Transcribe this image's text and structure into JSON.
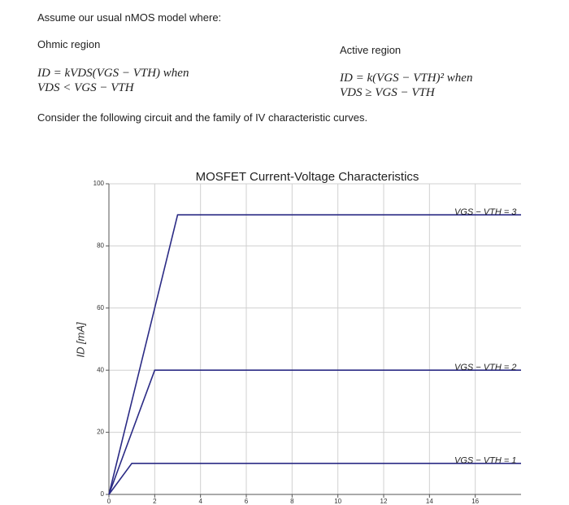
{
  "document": {
    "intro": "Assume our usual nMOS model where:",
    "ohmic": {
      "heading": "Ohmic region",
      "line1": "ID = kVDS(VGS − VTH) when",
      "line2": "VDS < VGS − VTH"
    },
    "active": {
      "heading": "Active region",
      "line1": "ID = k(VGS − VTH)² when",
      "line2": "VDS ≥ VGS − VTH"
    },
    "consider": "Consider the following circuit and the family of IV characteristic curves."
  },
  "chart_data": {
    "type": "line",
    "title": "MOSFET Current-Voltage Characteristics",
    "y_label": "ID [mA]",
    "xlim": [
      0,
      18
    ],
    "ylim": [
      0,
      100
    ],
    "xticks": [
      0,
      2,
      4,
      6,
      8,
      10,
      12,
      14,
      16
    ],
    "yticks": [
      0,
      20,
      40,
      60,
      80,
      100
    ],
    "grid": true,
    "series": [
      {
        "name": "VGS − VTH = 3",
        "color": "#2b2b85",
        "x": [
          0,
          3,
          18
        ],
        "values": [
          0,
          90,
          90
        ]
      },
      {
        "name": "VGS − VTH = 2",
        "color": "#2b2b85",
        "x": [
          0,
          2,
          18
        ],
        "values": [
          0,
          40,
          40
        ]
      },
      {
        "name": "VGS − VTH = 1",
        "color": "#2b2b85",
        "x": [
          0,
          1,
          18
        ],
        "values": [
          0,
          10,
          10
        ]
      }
    ]
  }
}
